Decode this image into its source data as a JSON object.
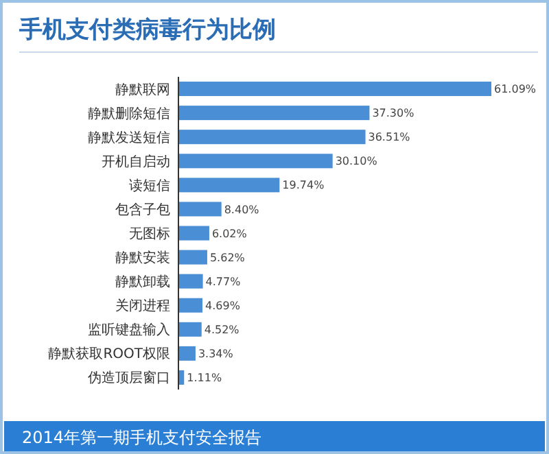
{
  "chart_data": {
    "type": "bar",
    "orientation": "horizontal",
    "title": "手机支付类病毒行为比例",
    "categories": [
      "静默联网",
      "静默删除短信",
      "静默发送短信",
      "开机自启动",
      "读短信",
      "包含子包",
      "无图标",
      "静默安装",
      "静默卸载",
      "关闭进程",
      "监听键盘输入",
      "静默获取ROOT权限",
      "伪造顶层窗口"
    ],
    "values": [
      61.09,
      37.3,
      36.51,
      30.1,
      19.74,
      8.4,
      6.02,
      5.62,
      4.77,
      4.69,
      4.52,
      3.34,
      1.11
    ],
    "value_labels": [
      "61.09%",
      "37.30%",
      "36.51%",
      "30.10%",
      "19.74%",
      "8.40%",
      "6.02%",
      "5.62%",
      "4.77%",
      "4.69%",
      "4.52%",
      "3.34%",
      "1.11%"
    ],
    "color": "#4a8fd6",
    "annotations": [
      "2014年第一期手机支付安全报告"
    ]
  }
}
